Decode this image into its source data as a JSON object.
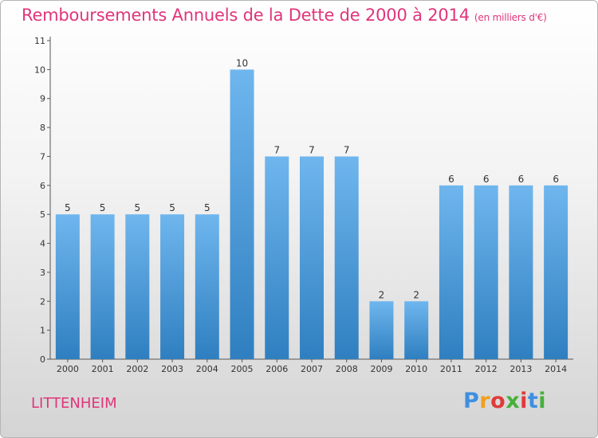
{
  "title": "Remboursements Annuels de la Dette de 2000 à 2014",
  "subtitle": "(en milliers d'€)",
  "commune": "LITTENHEIM",
  "logo": [
    "P",
    "r",
    "o",
    "x",
    "i",
    "t",
    "i"
  ],
  "colors": {
    "bar_light": "#6fb6ee",
    "bar_dark": "#2f7fc0",
    "title": "#e0357a",
    "logo": [
      "#3f8fe0",
      "#f0a020",
      "#e03a3a",
      "#46b03a",
      "#e03a3a",
      "#3f8fe0",
      "#46b03a"
    ]
  },
  "chart_data": {
    "type": "bar",
    "title": "Remboursements Annuels de la Dette de 2000 à 2014",
    "xlabel": "",
    "ylabel": "",
    "ylim": [
      0,
      11
    ],
    "yticks": [
      0,
      1,
      2,
      3,
      4,
      5,
      6,
      7,
      8,
      9,
      10,
      11
    ],
    "grid": false,
    "categories": [
      "2000",
      "2001",
      "2002",
      "2003",
      "2004",
      "2005",
      "2006",
      "2007",
      "2008",
      "2009",
      "2010",
      "2011",
      "2012",
      "2013",
      "2014"
    ],
    "values": [
      5,
      5,
      5,
      5,
      5,
      10,
      7,
      7,
      7,
      2,
      2,
      6,
      6,
      6,
      6
    ]
  }
}
